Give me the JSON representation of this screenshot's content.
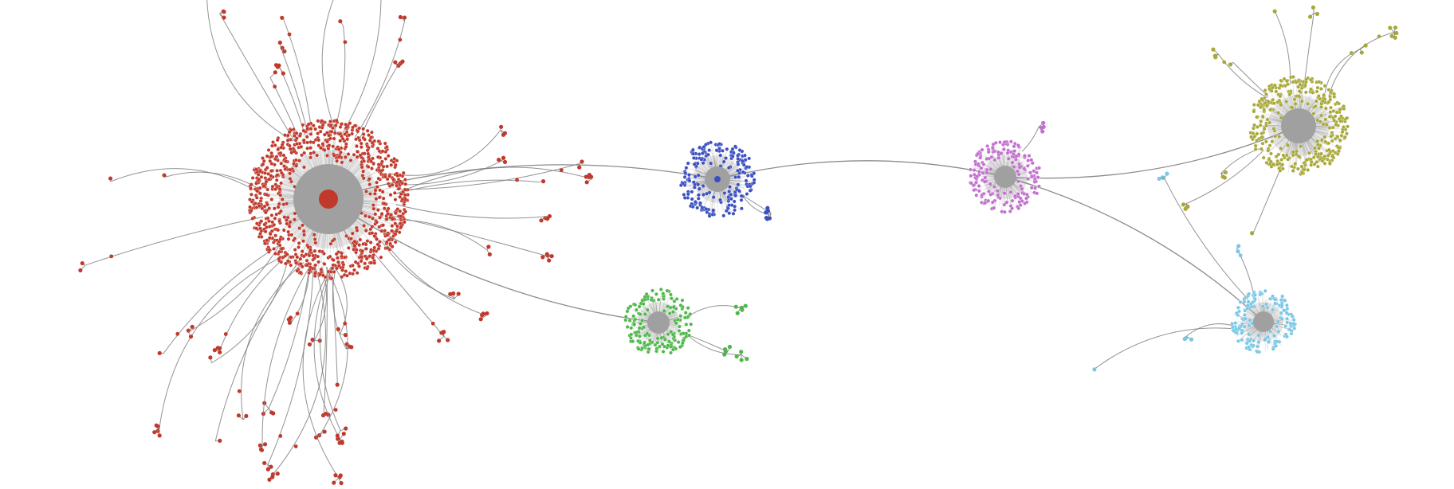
{
  "diagram": {
    "type": "network-graph",
    "edge_color": "#808080",
    "hub_fill_color": "#a0a0a0",
    "clusters": [
      {
        "id": "red",
        "color": "#c0392b"
      },
      {
        "id": "blue",
        "color": "#3a4fc1"
      },
      {
        "id": "green",
        "color": "#4fb84a"
      },
      {
        "id": "magenta",
        "color": "#c36fd0"
      },
      {
        "id": "olive",
        "color": "#a8a83a"
      },
      {
        "id": "cyan",
        "color": "#79c7e6"
      }
    ],
    "bridges": [
      {
        "from": "red",
        "to": "blue"
      },
      {
        "from": "red",
        "to": "green"
      },
      {
        "from": "blue",
        "to": "magenta"
      },
      {
        "from": "magenta",
        "to": "olive"
      },
      {
        "from": "magenta",
        "to": "cyan"
      }
    ]
  }
}
